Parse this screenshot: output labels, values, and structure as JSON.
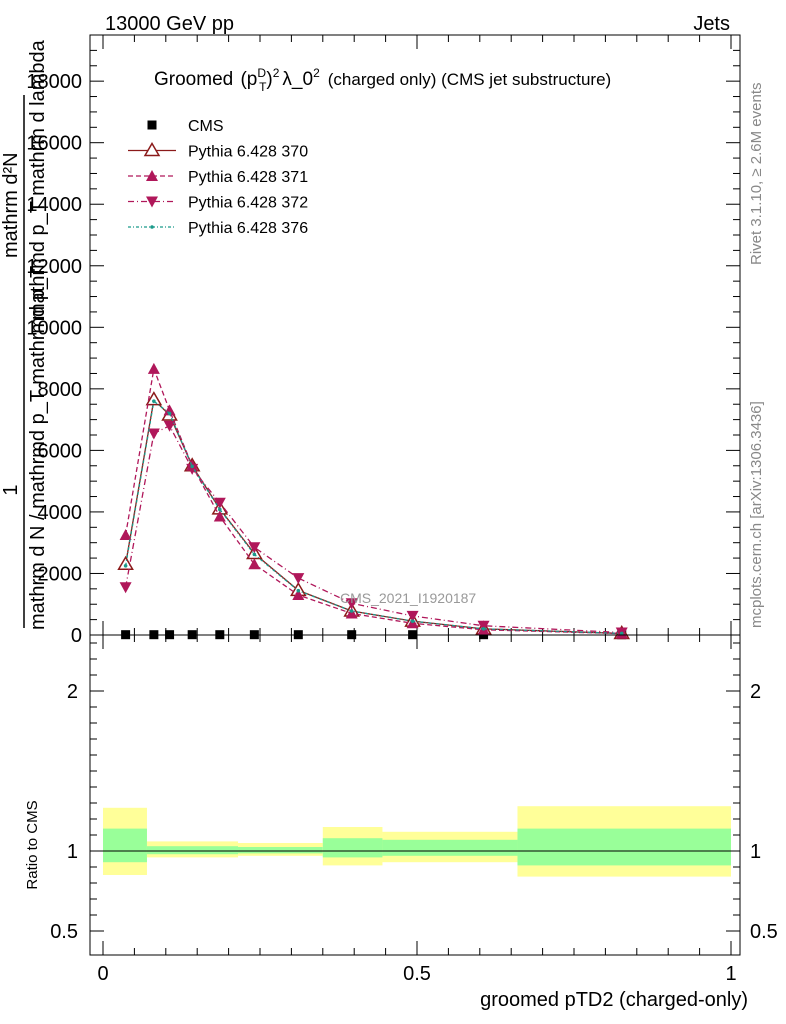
{
  "header": {
    "left": "13000 GeV pp",
    "right": "Jets"
  },
  "title": {
    "prefix": "Groomed",
    "pt_base": "(p",
    "pt_sup": "D",
    "pt_sub": "T",
    "pt_close": ")",
    "sq": "2",
    "lambda": "λ_0",
    "lambda_sup": "2",
    "suffix": "(charged only) (CMS jet substructure)"
  },
  "side_labels": {
    "rivet": "Rivet 3.1.10, ≥ 2.6M events",
    "mcplots": "mcplots.cern.ch [arXiv:1306.3436]"
  },
  "watermark": "CMS_2021_I1920187",
  "ylabel": {
    "one": "1",
    "denominator": "mathrm d N / mathrmd p_T mathrmd p_T",
    "numerator_a": "mathrm d²N",
    "numerator_b": "mathrmd p_T mathrm d lambda"
  },
  "legend": [
    {
      "label": "CMS"
    },
    {
      "label": "Pythia 6.428 370"
    },
    {
      "label": "Pythia 6.428 371"
    },
    {
      "label": "Pythia 6.428 372"
    },
    {
      "label": "Pythia 6.428 376"
    }
  ],
  "chart_data": {
    "type": "line",
    "xlabel": "groomed pTD2 (charged-only)",
    "main": {
      "xlim": [
        0,
        1
      ],
      "ylim": [
        0,
        19500
      ],
      "yticks": [
        {
          "v": 0,
          "label": "0"
        },
        {
          "v": 2000,
          "label": "2000"
        },
        {
          "v": 4000,
          "label": "4000"
        },
        {
          "v": 6000,
          "label": "6000"
        },
        {
          "v": 8000,
          "label": "8000"
        },
        {
          "v": 10000,
          "label": "10000"
        },
        {
          "v": 12000,
          "label": "12000"
        },
        {
          "v": 14000,
          "label": "14000"
        },
        {
          "v": 16000,
          "label": "16000"
        },
        {
          "v": 18000,
          "label": "18000"
        }
      ],
      "series": [
        {
          "name": "CMS",
          "color": "#000000",
          "marker": "square",
          "x": [
            0.036,
            0.081,
            0.106,
            0.142,
            0.186,
            0.241,
            0.311,
            0.396,
            0.493,
            0.606,
            0.826
          ],
          "y": [
            10,
            10,
            10,
            10,
            10,
            10,
            10,
            10,
            10,
            10,
            10
          ]
        },
        {
          "name": "Pythia 6.428 370",
          "color": "#8b1a1a",
          "marker": "triangle-open",
          "dash": "",
          "x": [
            0.036,
            0.081,
            0.106,
            0.142,
            0.186,
            0.241,
            0.311,
            0.396,
            0.493,
            0.606,
            0.826
          ],
          "y": [
            2300,
            7650,
            7150,
            5500,
            4100,
            2650,
            1450,
            780,
            450,
            200,
            50
          ]
        },
        {
          "name": "Pythia 6.428 371",
          "color": "#b0175a",
          "marker": "triangle-up",
          "dash": "5,3",
          "x": [
            0.036,
            0.081,
            0.106,
            0.142,
            0.186,
            0.241,
            0.311,
            0.396,
            0.493,
            0.606,
            0.826
          ],
          "y": [
            3250,
            8650,
            7300,
            5500,
            3850,
            2300,
            1300,
            700,
            380,
            170,
            45
          ]
        },
        {
          "name": "Pythia 6.428 372",
          "color": "#b0175a",
          "marker": "triangle-down",
          "dash": "6,3,1,3",
          "x": [
            0.036,
            0.081,
            0.106,
            0.142,
            0.186,
            0.241,
            0.311,
            0.396,
            0.493,
            0.606,
            0.826
          ],
          "y": [
            1550,
            6550,
            6800,
            5400,
            4300,
            2850,
            1850,
            1030,
            620,
            300,
            80
          ]
        },
        {
          "name": "Pythia 6.428 376",
          "color": "#1a9a8a",
          "marker": "dot",
          "dash": "3,2,1,2",
          "x": [
            0.036,
            0.081,
            0.106,
            0.142,
            0.186,
            0.241,
            0.311,
            0.396,
            0.493,
            0.606,
            0.826
          ],
          "y": [
            2250,
            7600,
            7200,
            5480,
            4080,
            2620,
            1440,
            780,
            450,
            200,
            50
          ]
        }
      ]
    },
    "ratio": {
      "ylabel": "Ratio to CMS",
      "ylim": [
        0.35,
        2.35
      ],
      "yticks": [
        {
          "v": 0.5,
          "label": "0.5"
        },
        {
          "v": 1,
          "label": "1"
        },
        {
          "v": 2,
          "label": "2"
        }
      ],
      "xticks": [
        {
          "v": 0,
          "label": "0"
        },
        {
          "v": 0.5,
          "label": "0.5"
        },
        {
          "v": 1,
          "label": "1"
        }
      ],
      "band_colors": {
        "outer": "#ffff99",
        "inner": "#99ff99"
      },
      "bands": [
        {
          "x0": 0.0,
          "x1": 0.07,
          "outer": [
            0.85,
            1.27
          ],
          "inner": [
            0.93,
            1.14
          ]
        },
        {
          "x0": 0.07,
          "x1": 0.215,
          "outer": [
            0.96,
            1.06
          ],
          "inner": [
            0.98,
            1.03
          ]
        },
        {
          "x0": 0.215,
          "x1": 0.35,
          "outer": [
            0.97,
            1.05
          ],
          "inner": [
            0.985,
            1.025
          ]
        },
        {
          "x0": 0.35,
          "x1": 0.445,
          "outer": [
            0.91,
            1.15
          ],
          "inner": [
            0.96,
            1.08
          ]
        },
        {
          "x0": 0.445,
          "x1": 0.66,
          "outer": [
            0.93,
            1.12
          ],
          "inner": [
            0.97,
            1.07
          ]
        },
        {
          "x0": 0.66,
          "x1": 1.0,
          "outer": [
            0.84,
            1.28
          ],
          "inner": [
            0.91,
            1.14
          ]
        }
      ]
    }
  }
}
